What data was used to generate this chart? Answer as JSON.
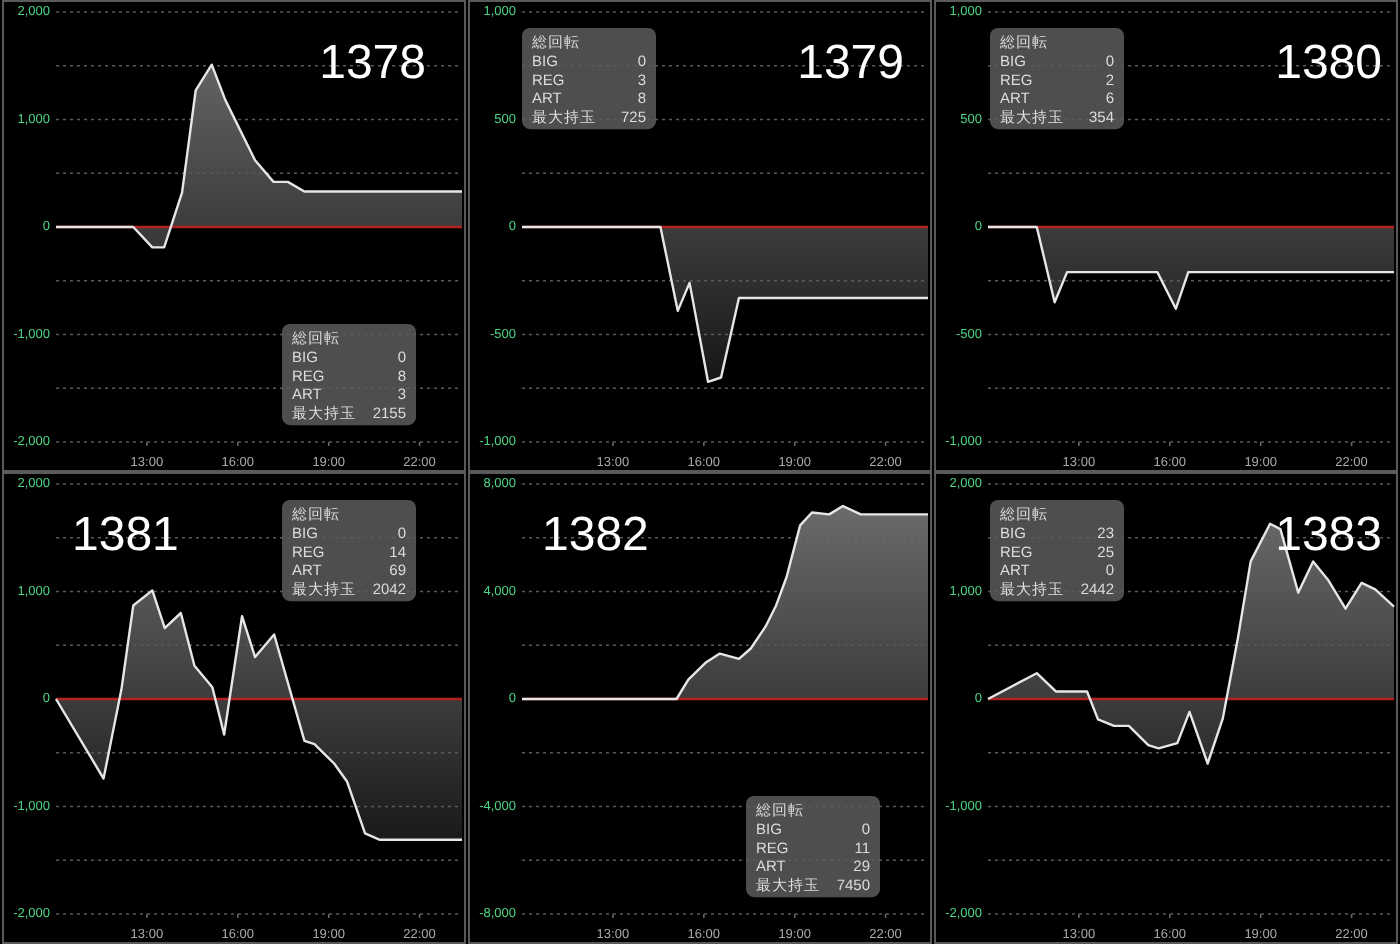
{
  "chart_data": [
    {
      "type": "area",
      "title": "1378",
      "color": "#e6e6e6",
      "grid": "y",
      "xlim": [
        10,
        23.4
      ],
      "xticks": [
        {
          "value": 13,
          "label": "13:00"
        },
        {
          "value": 16,
          "label": "16:00"
        },
        {
          "value": 19,
          "label": "19:00"
        },
        {
          "value": 22,
          "label": "22:00"
        }
      ],
      "ylim": [
        -2000,
        2000
      ],
      "yticks": [
        {
          "value": -2000,
          "label": "-2,000"
        },
        {
          "value": -1500,
          "label": null
        },
        {
          "value": -1000,
          "label": "-1,000"
        },
        {
          "value": -500,
          "label": null
        },
        {
          "value": 0,
          "label": "0"
        },
        {
          "value": 500,
          "label": null
        },
        {
          "value": 1000,
          "label": "1,000"
        },
        {
          "value": 1500,
          "label": null
        },
        {
          "value": 2000,
          "label": "2,000"
        }
      ],
      "ref_lines": [
        {
          "axis": "y",
          "value": 0,
          "color": "#b22222"
        }
      ],
      "x": [
        10,
        12.55,
        13.18,
        13.57,
        14.16,
        14.61,
        15.14,
        15.59,
        16.57,
        17.18,
        17.65,
        18.2,
        23.4
      ],
      "values": [
        0,
        0,
        -190,
        -190,
        320,
        1270,
        1510,
        1180,
        620,
        420,
        420,
        330,
        330
      ],
      "annotations": [
        "総回転",
        "BIG",
        "0",
        "REG",
        "8",
        "ART",
        "3",
        "最大持玉",
        "2155"
      ]
    },
    {
      "type": "area",
      "title": "1379",
      "color": "#e6e6e6",
      "grid": "y",
      "xlim": [
        10,
        23.4
      ],
      "xticks": [
        {
          "value": 13,
          "label": "13:00"
        },
        {
          "value": 16,
          "label": "16:00"
        },
        {
          "value": 19,
          "label": "19:00"
        },
        {
          "value": 22,
          "label": "22:00"
        }
      ],
      "ylim": [
        -1000,
        1000
      ],
      "yticks": [
        {
          "value": -1000,
          "label": "-1,000"
        },
        {
          "value": -750,
          "label": null
        },
        {
          "value": -500,
          "label": "-500"
        },
        {
          "value": -250,
          "label": null
        },
        {
          "value": 0,
          "label": "0"
        },
        {
          "value": 250,
          "label": null
        },
        {
          "value": 500,
          "label": "500"
        },
        {
          "value": 750,
          "label": null
        },
        {
          "value": 1000,
          "label": "1,000"
        }
      ],
      "ref_lines": [
        {
          "axis": "y",
          "value": 0,
          "color": "#b22222"
        }
      ],
      "x": [
        10,
        14.57,
        15.14,
        15.53,
        16.14,
        16.57,
        17.16,
        23.4
      ],
      "values": [
        0,
        0,
        -390,
        -260,
        -720,
        -700,
        -330,
        -330
      ],
      "annotations": [
        "総回転",
        "BIG",
        "0",
        "REG",
        "3",
        "ART",
        "8",
        "最大持玉",
        "725"
      ]
    },
    {
      "type": "area",
      "title": "1380",
      "color": "#e6e6e6",
      "grid": "y",
      "xlim": [
        10,
        23.4
      ],
      "xticks": [
        {
          "value": 13,
          "label": "13:00"
        },
        {
          "value": 16,
          "label": "16:00"
        },
        {
          "value": 19,
          "label": "19:00"
        },
        {
          "value": 22,
          "label": "22:00"
        }
      ],
      "ylim": [
        -1000,
        1000
      ],
      "yticks": [
        {
          "value": -1000,
          "label": "-1,000"
        },
        {
          "value": -750,
          "label": null
        },
        {
          "value": -500,
          "label": "-500"
        },
        {
          "value": -250,
          "label": null
        },
        {
          "value": 0,
          "label": "0"
        },
        {
          "value": 250,
          "label": null
        },
        {
          "value": 500,
          "label": "500"
        },
        {
          "value": 750,
          "label": null
        },
        {
          "value": 1000,
          "label": "1,000"
        }
      ],
      "ref_lines": [
        {
          "axis": "y",
          "value": 0,
          "color": "#b22222"
        }
      ],
      "x": [
        10,
        11.61,
        12.2,
        12.61,
        15.59,
        16.2,
        16.61,
        23.4
      ],
      "values": [
        0,
        0,
        -350,
        -210,
        -210,
        -380,
        -210,
        -210
      ],
      "annotations": [
        "総回転",
        "BIG",
        "0",
        "REG",
        "2",
        "ART",
        "6",
        "最大持玉",
        "354"
      ]
    },
    {
      "type": "area",
      "title": "1381",
      "color": "#e6e6e6",
      "grid": "y",
      "xlim": [
        10,
        23.4
      ],
      "xticks": [
        {
          "value": 13,
          "label": "13:00"
        },
        {
          "value": 16,
          "label": "16:00"
        },
        {
          "value": 19,
          "label": "19:00"
        },
        {
          "value": 22,
          "label": "22:00"
        }
      ],
      "ylim": [
        -2000,
        2000
      ],
      "yticks": [
        {
          "value": -2000,
          "label": "-2,000"
        },
        {
          "value": -1500,
          "label": null
        },
        {
          "value": -1000,
          "label": "-1,000"
        },
        {
          "value": -500,
          "label": null
        },
        {
          "value": 0,
          "label": "0"
        },
        {
          "value": 500,
          "label": null
        },
        {
          "value": 1000,
          "label": "1,000"
        },
        {
          "value": 1500,
          "label": null
        },
        {
          "value": 2000,
          "label": "2,000"
        }
      ],
      "ref_lines": [
        {
          "axis": "y",
          "value": 0,
          "color": "#b22222"
        }
      ],
      "x": [
        10,
        11.57,
        12.16,
        12.55,
        13.18,
        13.59,
        14.12,
        14.57,
        15.16,
        15.55,
        16.14,
        16.57,
        17.2,
        18.2,
        18.53,
        19.18,
        19.61,
        20.2,
        20.69,
        23.4
      ],
      "values": [
        0,
        -740,
        90,
        870,
        1010,
        660,
        800,
        310,
        110,
        -330,
        770,
        390,
        600,
        -390,
        -420,
        -600,
        -770,
        -1250,
        -1310,
        -1310
      ],
      "annotations": [
        "総回転",
        "BIG",
        "0",
        "REG",
        "14",
        "ART",
        "69",
        "最大持玉",
        "2042"
      ]
    },
    {
      "type": "area",
      "title": "1382",
      "color": "#e6e6e6",
      "grid": "y",
      "xlim": [
        10,
        23.4
      ],
      "xticks": [
        {
          "value": 13,
          "label": "13:00"
        },
        {
          "value": 16,
          "label": "16:00"
        },
        {
          "value": 19,
          "label": "19:00"
        },
        {
          "value": 22,
          "label": "22:00"
        }
      ],
      "ylim": [
        -8000,
        8000
      ],
      "yticks": [
        {
          "value": -8000,
          "label": "-8,000"
        },
        {
          "value": -6000,
          "label": null
        },
        {
          "value": -4000,
          "label": "-4,000"
        },
        {
          "value": -2000,
          "label": null
        },
        {
          "value": 0,
          "label": "0"
        },
        {
          "value": 2000,
          "label": null
        },
        {
          "value": 4000,
          "label": "4,000"
        },
        {
          "value": 6000,
          "label": null
        },
        {
          "value": 8000,
          "label": "8,000"
        }
      ],
      "ref_lines": [
        {
          "axis": "y",
          "value": 0,
          "color": "#b22222"
        }
      ],
      "x": [
        10,
        15.1,
        15.49,
        16.08,
        16.53,
        17.16,
        17.55,
        18.04,
        18.39,
        18.73,
        19.18,
        19.57,
        20.14,
        20.59,
        21.18,
        23.4
      ],
      "values": [
        0,
        0,
        720,
        1370,
        1690,
        1490,
        1880,
        2700,
        3490,
        4530,
        6460,
        6940,
        6870,
        7180,
        6870,
        6870
      ],
      "annotations": [
        "総回転",
        "BIG",
        "0",
        "REG",
        "11",
        "ART",
        "29",
        "最大持玉",
        "7450"
      ]
    },
    {
      "type": "area",
      "title": "1383",
      "color": "#e6e6e6",
      "grid": "y",
      "xlim": [
        10,
        23.4
      ],
      "xticks": [
        {
          "value": 13,
          "label": "13:00"
        },
        {
          "value": 16,
          "label": "16:00"
        },
        {
          "value": 19,
          "label": "19:00"
        },
        {
          "value": 22,
          "label": "22:00"
        }
      ],
      "ylim": [
        -2000,
        2000
      ],
      "yticks": [
        {
          "value": -2000,
          "label": "-2,000"
        },
        {
          "value": -1500,
          "label": null
        },
        {
          "value": -1000,
          "label": "-1,000"
        },
        {
          "value": -500,
          "label": null
        },
        {
          "value": 0,
          "label": "0"
        },
        {
          "value": 500,
          "label": null
        },
        {
          "value": 1000,
          "label": "1,000"
        },
        {
          "value": 1500,
          "label": null
        },
        {
          "value": 2000,
          "label": "2,000"
        }
      ],
      "ref_lines": [
        {
          "axis": "y",
          "value": 0,
          "color": "#b22222"
        }
      ],
      "x": [
        10,
        11.61,
        12.24,
        13.27,
        13.63,
        14.16,
        14.65,
        15.29,
        15.63,
        16.25,
        16.65,
        17.25,
        17.75,
        18.25,
        18.67,
        19.31,
        19.65,
        20.24,
        20.73,
        21.22,
        21.8,
        22.33,
        22.78,
        23.4
      ],
      "values": [
        0,
        240,
        70,
        70,
        -190,
        -250,
        -250,
        -430,
        -460,
        -410,
        -120,
        -600,
        -180,
        570,
        1280,
        1630,
        1580,
        990,
        1280,
        1110,
        840,
        1080,
        1020,
        860
      ],
      "annotations": [
        "総回転",
        "BIG",
        "23",
        "REG",
        "25",
        "ART",
        "0",
        "最大持玉",
        "2442"
      ]
    }
  ]
}
